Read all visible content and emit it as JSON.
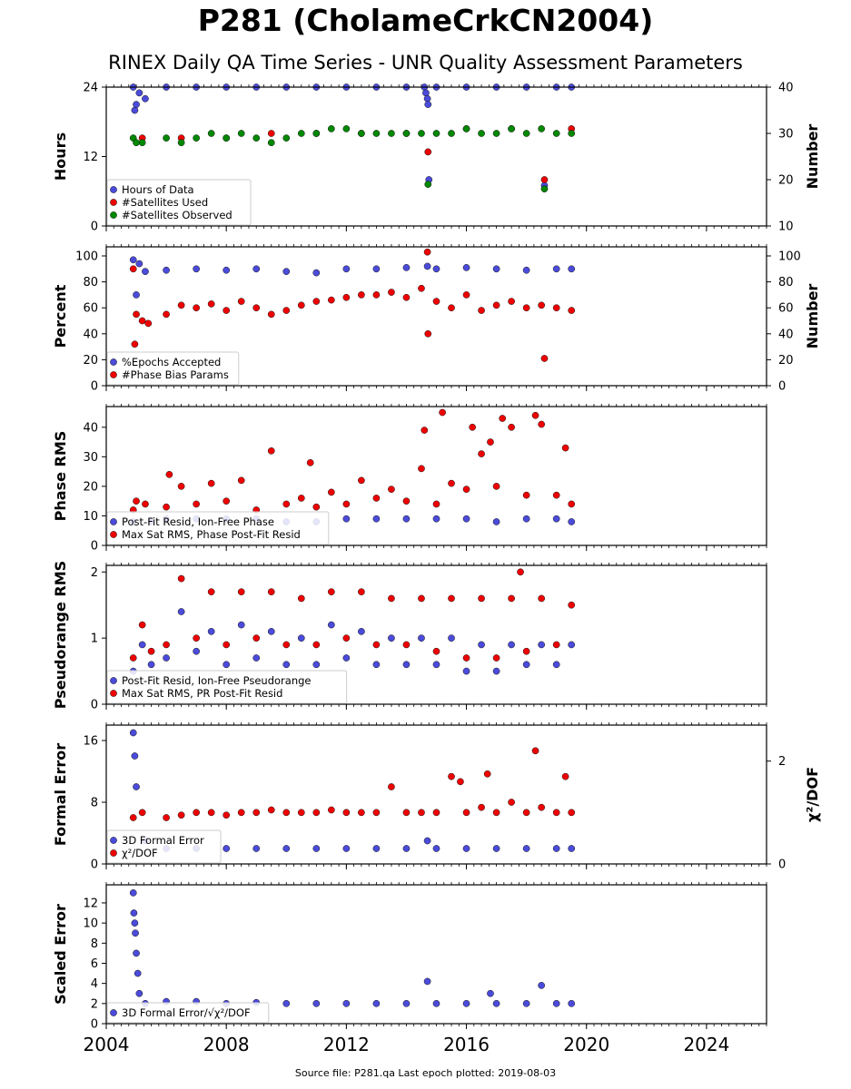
{
  "header": {
    "title": "P281 (CholameCrkCN2004)",
    "subtitle": "RINEX Daily QA Time Series - UNR Quality Assessment Parameters"
  },
  "footer": {
    "source": "Source file: P281.qa Last epoch plotted: 2019-08-03"
  },
  "colors": {
    "blue": "#4b4bdb",
    "red": "#ee0000",
    "green": "#008800"
  },
  "chart_data": [
    {
      "type": "scatter",
      "ylabel": "Hours",
      "ylabel_right": "Number",
      "xlim": [
        2004,
        2026
      ],
      "ylim": [
        0,
        24
      ],
      "ylim_right": [
        10,
        40
      ],
      "yticks": [
        "0",
        "12",
        "24"
      ],
      "yticks_right": [
        "10",
        "20",
        "30",
        "40"
      ],
      "legend_position": "lower-left",
      "series": [
        {
          "name": "Hours of Data",
          "color": "blue",
          "axis": "left",
          "x": [
            2004.9,
            2004.95,
            2005.0,
            2005.1,
            2005.3,
            2006.0,
            2007.0,
            2008.0,
            2009.0,
            2010.0,
            2011.0,
            2012.0,
            2013.0,
            2014.0,
            2014.6,
            2014.65,
            2014.7,
            2014.72,
            2014.75,
            2015.0,
            2016.0,
            2017.0,
            2018.0,
            2018.6,
            2019.0,
            2019.5
          ],
          "y": [
            24,
            20,
            21,
            23,
            22,
            24,
            24,
            24,
            24,
            24,
            24,
            24,
            24,
            24,
            24,
            23,
            22,
            21,
            8,
            24,
            24,
            24,
            24,
            7,
            24,
            24
          ]
        },
        {
          "name": "#Satellites Used",
          "color": "red",
          "axis": "right",
          "x": [
            2005.2,
            2006.5,
            2008.0,
            2009.5,
            2011.0,
            2012.5,
            2014.0,
            2014.72,
            2016.0,
            2017.5,
            2018.6,
            2019.5
          ],
          "y": [
            29,
            29,
            29,
            30,
            30,
            30,
            30,
            26,
            31,
            31,
            20,
            31
          ]
        },
        {
          "name": "#Satellites Observed",
          "color": "green",
          "axis": "right",
          "x": [
            2004.9,
            2005.0,
            2005.2,
            2006.0,
            2006.5,
            2007.0,
            2007.5,
            2008.0,
            2008.5,
            2009.0,
            2009.5,
            2010.0,
            2010.5,
            2011.0,
            2011.5,
            2012.0,
            2012.5,
            2013.0,
            2013.5,
            2014.0,
            2014.5,
            2014.72,
            2015.0,
            2015.5,
            2016.0,
            2016.5,
            2017.0,
            2017.5,
            2018.0,
            2018.5,
            2018.6,
            2019.0,
            2019.5
          ],
          "y": [
            29,
            28,
            28,
            29,
            28,
            29,
            30,
            29,
            30,
            29,
            28,
            29,
            30,
            30,
            31,
            31,
            30,
            30,
            30,
            30,
            30,
            19,
            30,
            30,
            31,
            30,
            30,
            31,
            30,
            31,
            18,
            30,
            30
          ]
        }
      ]
    },
    {
      "type": "scatter",
      "ylabel": "Percent",
      "ylabel_right": "Number",
      "xlim": [
        2004,
        2026
      ],
      "ylim": [
        0,
        107
      ],
      "ylim_right": [
        0,
        107
      ],
      "yticks": [
        "0",
        "20",
        "40",
        "60",
        "80",
        "100"
      ],
      "yticks_right": [
        "0",
        "20",
        "40",
        "60",
        "80",
        "100"
      ],
      "legend_position": "lower-left",
      "series": [
        {
          "name": "%Epochs Accepted",
          "color": "blue",
          "axis": "left",
          "x": [
            2004.9,
            2005.0,
            2005.1,
            2005.3,
            2006.0,
            2007.0,
            2008.0,
            2009.0,
            2010.0,
            2011.0,
            2012.0,
            2013.0,
            2014.0,
            2014.7,
            2015.0,
            2016.0,
            2017.0,
            2018.0,
            2019.0,
            2019.5
          ],
          "y": [
            97,
            70,
            94,
            88,
            89,
            90,
            89,
            90,
            88,
            87,
            90,
            90,
            91,
            92,
            90,
            91,
            90,
            89,
            90,
            90
          ]
        },
        {
          "name": "#Phase Bias Params",
          "color": "red",
          "axis": "right",
          "x": [
            2004.9,
            2004.95,
            2005.0,
            2005.2,
            2005.4,
            2006.0,
            2006.5,
            2007.0,
            2007.5,
            2008.0,
            2008.5,
            2009.0,
            2009.5,
            2010.0,
            2010.5,
            2011.0,
            2011.5,
            2012.0,
            2012.5,
            2013.0,
            2013.5,
            2014.0,
            2014.5,
            2014.7,
            2014.72,
            2015.0,
            2015.5,
            2016.0,
            2016.5,
            2017.0,
            2017.5,
            2018.0,
            2018.5,
            2018.6,
            2019.0,
            2019.5
          ],
          "y": [
            90,
            32,
            55,
            50,
            48,
            55,
            62,
            60,
            63,
            58,
            65,
            60,
            55,
            58,
            62,
            65,
            66,
            68,
            70,
            70,
            72,
            68,
            75,
            103,
            40,
            65,
            60,
            70,
            58,
            62,
            65,
            60,
            62,
            21,
            60,
            58
          ]
        }
      ]
    },
    {
      "type": "scatter",
      "ylabel": "Phase RMS",
      "xlim": [
        2004,
        2026
      ],
      "ylim": [
        0,
        47
      ],
      "yticks": [
        "0",
        "10",
        "20",
        "30",
        "40"
      ],
      "legend_position": "lower-left",
      "series": [
        {
          "name": "Post-Fit Resid, Ion-Free Phase",
          "color": "blue",
          "axis": "left",
          "x": [
            2004.9,
            2005.5,
            2006.0,
            2007.0,
            2008.0,
            2009.0,
            2010.0,
            2011.0,
            2012.0,
            2013.0,
            2014.0,
            2015.0,
            2016.0,
            2017.0,
            2018.0,
            2019.0,
            2019.5
          ],
          "y": [
            8,
            8,
            9,
            9,
            9,
            9,
            8,
            8,
            9,
            9,
            9,
            9,
            9,
            8,
            9,
            9,
            8
          ]
        },
        {
          "name": "Max Sat RMS, Phase Post-Fit Resid",
          "color": "red",
          "axis": "left",
          "x": [
            2004.9,
            2005.0,
            2005.3,
            2006.0,
            2006.1,
            2006.5,
            2007.0,
            2007.5,
            2008.0,
            2008.5,
            2009.0,
            2009.5,
            2010.0,
            2010.5,
            2010.8,
            2011.0,
            2011.5,
            2012.0,
            2012.5,
            2013.0,
            2013.5,
            2014.0,
            2014.5,
            2014.6,
            2015.0,
            2015.2,
            2015.5,
            2016.0,
            2016.2,
            2016.5,
            2016.8,
            2017.0,
            2017.2,
            2017.5,
            2018.0,
            2018.3,
            2018.5,
            2019.0,
            2019.3,
            2019.5
          ],
          "y": [
            12,
            15,
            14,
            13,
            24,
            20,
            14,
            21,
            15,
            22,
            12,
            32,
            14,
            16,
            28,
            13,
            18,
            14,
            22,
            16,
            19,
            15,
            26,
            39,
            14,
            45,
            21,
            19,
            40,
            31,
            35,
            20,
            43,
            40,
            17,
            44,
            41,
            17,
            33,
            14
          ]
        }
      ]
    },
    {
      "type": "scatter",
      "ylabel": "Pseudorange RMS",
      "xlim": [
        2004,
        2026
      ],
      "ylim": [
        0,
        2.1
      ],
      "yticks": [
        "0",
        "1",
        "2"
      ],
      "legend_position": "lower-left",
      "series": [
        {
          "name": "Post-Fit Resid, Ion-Free Pseudorange",
          "color": "blue",
          "axis": "left",
          "x": [
            2004.9,
            2005.2,
            2005.5,
            2006.0,
            2006.5,
            2007.0,
            2007.5,
            2008.0,
            2008.5,
            2009.0,
            2009.5,
            2010.0,
            2010.5,
            2011.0,
            2011.5,
            2012.0,
            2012.5,
            2013.0,
            2013.5,
            2014.0,
            2014.5,
            2015.0,
            2015.5,
            2016.0,
            2016.5,
            2017.0,
            2017.5,
            2018.0,
            2018.5,
            2019.0,
            2019.5
          ],
          "y": [
            0.5,
            0.9,
            0.6,
            0.7,
            1.4,
            0.8,
            1.1,
            0.6,
            1.2,
            0.7,
            1.1,
            0.6,
            1.0,
            0.6,
            1.2,
            0.7,
            1.1,
            0.6,
            1.0,
            0.6,
            1.0,
            0.6,
            1.0,
            0.5,
            0.9,
            0.5,
            0.9,
            0.6,
            0.9,
            0.6,
            0.9
          ]
        },
        {
          "name": "Max Sat RMS, PR Post-Fit Resid",
          "color": "red",
          "axis": "left",
          "x": [
            2004.9,
            2005.2,
            2005.5,
            2006.0,
            2006.5,
            2007.0,
            2007.5,
            2008.0,
            2008.5,
            2009.0,
            2009.5,
            2010.0,
            2010.5,
            2011.0,
            2011.5,
            2012.0,
            2012.5,
            2013.0,
            2013.5,
            2014.0,
            2014.5,
            2015.0,
            2015.5,
            2016.0,
            2016.5,
            2017.0,
            2017.5,
            2017.8,
            2018.0,
            2018.5,
            2019.0,
            2019.5
          ],
          "y": [
            0.7,
            1.2,
            0.8,
            0.9,
            1.9,
            1.0,
            1.7,
            0.9,
            1.7,
            1.0,
            1.7,
            0.9,
            1.6,
            0.9,
            1.7,
            1.0,
            1.7,
            0.9,
            1.6,
            0.9,
            1.6,
            0.8,
            1.6,
            0.7,
            1.6,
            0.7,
            1.6,
            2.0,
            0.8,
            1.6,
            0.9,
            1.5
          ]
        }
      ]
    },
    {
      "type": "scatter",
      "ylabel": "Formal Error",
      "ylabel_right": "χ²/DOF",
      "xlim": [
        2004,
        2026
      ],
      "ylim": [
        0,
        18
      ],
      "ylim_right": [
        0,
        2.7
      ],
      "yticks": [
        "0",
        "8",
        "16"
      ],
      "yticks_right": [
        "0",
        "2"
      ],
      "legend_position": "lower-left",
      "series": [
        {
          "name": "3D Formal Error",
          "color": "blue",
          "axis": "left",
          "x": [
            2004.9,
            2004.95,
            2005.0,
            2005.3,
            2006.0,
            2007.0,
            2008.0,
            2009.0,
            2010.0,
            2011.0,
            2012.0,
            2013.0,
            2014.0,
            2014.7,
            2015.0,
            2016.0,
            2017.0,
            2018.0,
            2019.0,
            2019.5
          ],
          "y": [
            17,
            14,
            10,
            3,
            2,
            2,
            2,
            2,
            2,
            2,
            2,
            2,
            2,
            3,
            2,
            2,
            2,
            2,
            2,
            2
          ]
        },
        {
          "name": "χ²/DOF",
          "color": "red",
          "axis": "right",
          "x": [
            2004.9,
            2005.2,
            2006.0,
            2006.5,
            2007.0,
            2007.5,
            2008.0,
            2008.5,
            2009.0,
            2009.5,
            2010.0,
            2010.5,
            2011.0,
            2011.5,
            2012.0,
            2012.5,
            2013.0,
            2013.5,
            2014.0,
            2014.5,
            2015.0,
            2015.5,
            2015.8,
            2016.0,
            2016.5,
            2016.7,
            2017.0,
            2017.5,
            2018.0,
            2018.3,
            2018.5,
            2019.0,
            2019.3,
            2019.5
          ],
          "y": [
            0.9,
            1.0,
            0.9,
            0.95,
            1.0,
            1.0,
            0.95,
            1.0,
            1.0,
            1.05,
            1.0,
            1.0,
            1.0,
            1.05,
            1.0,
            1.0,
            1.0,
            1.5,
            1.0,
            1.0,
            1.0,
            1.7,
            1.6,
            1.0,
            1.1,
            1.75,
            1.0,
            1.2,
            1.0,
            2.2,
            1.1,
            1.0,
            1.7,
            1.0
          ]
        }
      ]
    },
    {
      "type": "scatter",
      "ylabel": "Scaled Error",
      "xlim": [
        2004,
        2026
      ],
      "ylim": [
        0,
        13.8
      ],
      "yticks": [
        "0",
        "2",
        "4",
        "6",
        "8",
        "10",
        "12"
      ],
      "xticks": [
        "2004",
        "2008",
        "2012",
        "2016",
        "2020",
        "2024"
      ],
      "legend_position": "lower-left",
      "series": [
        {
          "name": "3D Formal Error/√χ²/DOF",
          "color": "blue",
          "axis": "left",
          "x": [
            2004.9,
            2004.92,
            2004.95,
            2004.97,
            2005.0,
            2005.05,
            2005.1,
            2005.3,
            2006.0,
            2007.0,
            2008.0,
            2009.0,
            2010.0,
            2011.0,
            2012.0,
            2013.0,
            2014.0,
            2014.7,
            2015.0,
            2016.0,
            2016.8,
            2017.0,
            2018.0,
            2018.5,
            2019.0,
            2019.5
          ],
          "y": [
            13,
            11,
            10,
            9,
            7,
            5,
            3,
            2,
            2.2,
            2.2,
            2.0,
            2.1,
            2.0,
            2.0,
            2.0,
            2.0,
            2.0,
            4.2,
            2.0,
            2.0,
            3.0,
            2.0,
            2.0,
            3.8,
            2.0,
            2.0
          ]
        }
      ]
    }
  ]
}
